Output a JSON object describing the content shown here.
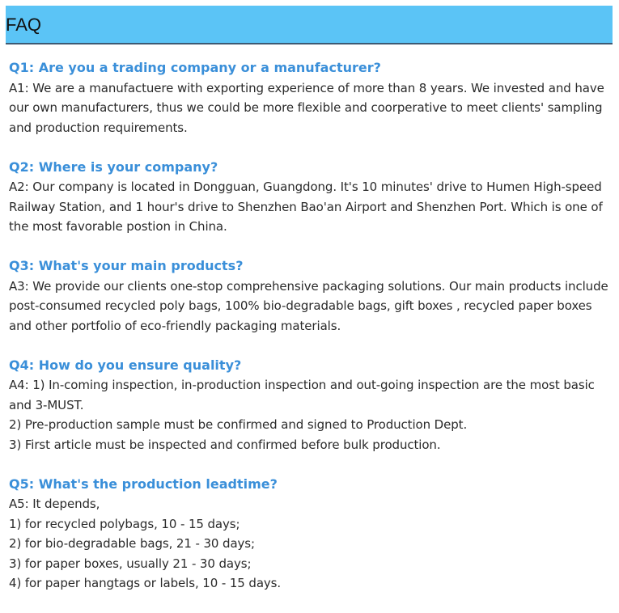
{
  "title": "FAQ",
  "faq": [
    {
      "q": "Q1: Are you a trading company or a manufacturer?",
      "a": "A1: We are a manufactuere with exporting experience of more than 8 years. We invested and have our own manufacturers, thus we could be more flexible and coorperative to meet clients' sampling and production requirements."
    },
    {
      "q": "Q2: Where is your company?",
      "a": "A2: Our company is located in Dongguan, Guangdong. It's 10 minutes' drive to Humen High-speed Railway Station, and 1 hour's drive to Shenzhen Bao'an Airport and Shenzhen Port. Which is one of the most favorable postion in China."
    },
    {
      "q": "Q3: What's your main products?",
      "a": "A3: We provide our clients one-stop comprehensive packaging solutions. Our main products include post-consumed recycled poly bags, 100% bio-degradable bags, gift boxes , recycled paper boxes and other portfolio of eco-friendly packaging materials."
    },
    {
      "q": "Q4: How do you ensure quality?",
      "a": "A4: 1) In-coming inspection, in-production inspection and out-going inspection are the most basic and 3-MUST.\n2) Pre-production sample must be confirmed and signed to Production Dept.\n3) First article must be inspected and confirmed before bulk production."
    },
    {
      "q": "Q5: What's the production leadtime?",
      "a": "A5: It depends,\n1) for recycled polybags, 10 - 15 days;\n2) for bio-degradable bags, 21 - 30 days;\n3) for paper boxes, usually 21 - 30 days;\n4) for paper hangtags or labels, 10 - 15 days."
    }
  ]
}
